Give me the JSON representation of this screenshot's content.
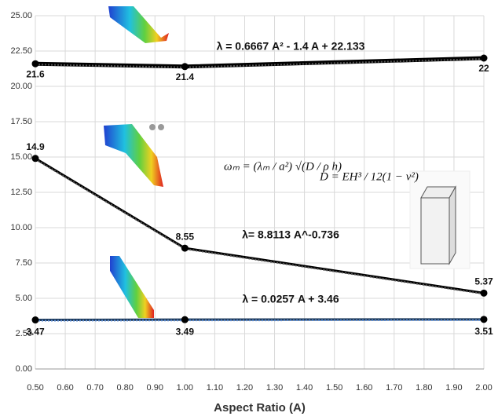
{
  "chart_data": {
    "type": "line",
    "x_label": "Aspect Ratio (A)",
    "x": [
      0.5,
      1.0,
      2.0
    ],
    "xlim": [
      0.5,
      2.0
    ],
    "xticks": [
      {
        "value": 0.5,
        "label": "0.50"
      },
      {
        "value": 0.6,
        "label": "0.60"
      },
      {
        "value": 0.7,
        "label": "0.70"
      },
      {
        "value": 0.8,
        "label": "0.80"
      },
      {
        "value": 0.9,
        "label": "0.90"
      },
      {
        "value": 1.0,
        "label": "1.00"
      },
      {
        "value": 1.1,
        "label": "1.10"
      },
      {
        "value": 1.2,
        "label": "1.20"
      },
      {
        "value": 1.3,
        "label": "1.30"
      },
      {
        "value": 1.4,
        "label": "1.40"
      },
      {
        "value": 1.5,
        "label": "1.50"
      },
      {
        "value": 1.6,
        "label": "1.60"
      },
      {
        "value": 1.7,
        "label": "1.70"
      },
      {
        "value": 1.8,
        "label": "1.80"
      },
      {
        "value": 1.9,
        "label": "1.90"
      },
      {
        "value": 2.0,
        "label": "2.00"
      }
    ],
    "ylim": [
      0,
      25
    ],
    "yticks": [
      {
        "value": 0,
        "label": "0.00"
      },
      {
        "value": 2.5,
        "label": "2.50"
      },
      {
        "value": 5,
        "label": "5.00"
      },
      {
        "value": 7.5,
        "label": "7.50"
      },
      {
        "value": 10,
        "label": "10.00"
      },
      {
        "value": 12.5,
        "label": "12.50"
      },
      {
        "value": 15,
        "label": "15.00"
      },
      {
        "value": 17.5,
        "label": "17.50"
      },
      {
        "value": 20,
        "label": "20.00"
      },
      {
        "value": 22.5,
        "label": "22.50"
      },
      {
        "value": 25,
        "label": "25.00"
      }
    ],
    "grid": true,
    "series": [
      {
        "color": "#000000",
        "values": [
          21.6,
          21.4,
          22
        ]
      },
      {
        "color": "#000000",
        "values": [
          14.9,
          8.55,
          5.37
        ]
      },
      {
        "color": "#1f3b5c",
        "values": [
          3.47,
          3.49,
          3.51
        ]
      }
    ],
    "annotations": [
      "λ = 0.6667 A² - 1.4 A + 22.133",
      "λ= 8.8113 A^-0.736",
      "λ = 0.0257 A + 3.46",
      "ωₘ = (λₘ / a²) √(D / ρ h)",
      "D = EH³ / 12(1 − ν²)"
    ]
  }
}
